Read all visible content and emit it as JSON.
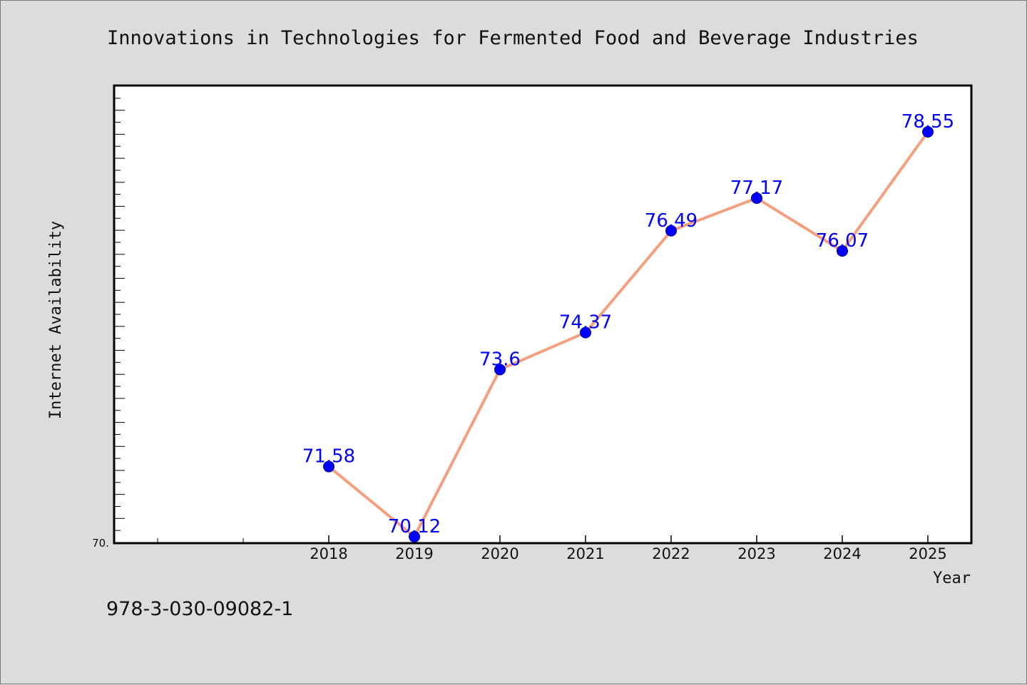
{
  "chart_data": {
    "type": "line",
    "title": "Innovations in Technologies for Fermented Food and Beverage Industries",
    "xlabel": "Year",
    "ylabel": "Internet Availability",
    "x": [
      "2018",
      "2019",
      "2020",
      "2021",
      "2022",
      "2023",
      "2024",
      "2025"
    ],
    "series": [
      {
        "values": [
          71.58,
          70.12,
          73.6,
          74.37,
          76.49,
          77.17,
          76.07,
          78.55
        ],
        "data_labels": [
          "71.58",
          "70.12",
          "73.6",
          "74.37",
          "76.49",
          "77.17",
          "76.07",
          "78.55"
        ]
      }
    ],
    "ylim": [
      70.0,
      79.5
    ],
    "y_tick_label": "70.",
    "line_color": "#f4a07f",
    "marker_color": "#0000ff",
    "label_color": "#0000ff",
    "grid": false,
    "legend": "none"
  },
  "footer": {
    "isbn": "978-3-030-09082-1"
  }
}
